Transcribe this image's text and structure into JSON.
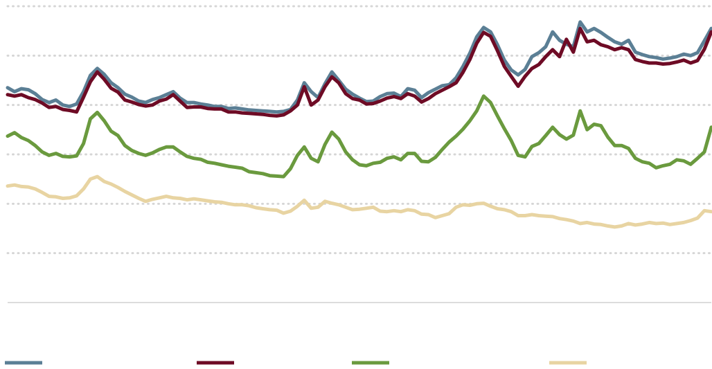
{
  "chart_data": {
    "type": "line",
    "title": "",
    "xlabel": "",
    "ylabel": "",
    "ylim": [
      0,
      6
    ],
    "yticks": [
      0,
      1,
      2,
      3,
      4,
      5,
      6
    ],
    "grid": true,
    "legend_position": "bottom",
    "x": [
      0,
      1,
      2,
      3,
      4,
      5,
      6,
      7,
      8,
      9,
      10,
      11,
      12,
      13,
      14,
      15,
      16,
      17,
      18,
      19,
      20,
      21,
      22,
      23,
      24,
      25,
      26,
      27,
      28,
      29,
      30,
      31,
      32,
      33,
      34,
      35,
      36,
      37,
      38,
      39,
      40,
      41,
      42,
      43,
      44,
      45,
      46,
      47,
      48,
      49,
      50,
      51,
      52,
      53,
      54,
      55,
      56,
      57,
      58,
      59,
      60,
      61,
      62,
      63,
      64,
      65,
      66,
      67,
      68,
      69,
      70,
      71,
      72,
      73,
      74,
      75,
      76,
      77,
      78,
      79,
      80,
      81,
      82,
      83,
      84,
      85,
      86,
      87,
      88,
      89,
      90,
      91,
      92,
      93,
      94,
      95,
      96,
      97,
      98,
      99,
      100,
      101,
      102
    ],
    "series": [
      {
        "color": "#5b7f95",
        "values": [
          4.35,
          4.27,
          4.33,
          4.31,
          4.23,
          4.11,
          4.05,
          4.1,
          4.0,
          3.97,
          4.02,
          4.27,
          4.6,
          4.74,
          4.62,
          4.45,
          4.35,
          4.22,
          4.16,
          4.08,
          4.05,
          4.11,
          4.15,
          4.21,
          4.27,
          4.14,
          4.05,
          4.05,
          4.02,
          4.0,
          3.97,
          3.97,
          3.93,
          3.94,
          3.92,
          3.9,
          3.89,
          3.88,
          3.87,
          3.86,
          3.87,
          3.91,
          4.1,
          4.45,
          4.27,
          4.15,
          4.43,
          4.67,
          4.5,
          4.32,
          4.22,
          4.14,
          4.07,
          4.08,
          4.17,
          4.23,
          4.24,
          4.17,
          4.33,
          4.3,
          4.15,
          4.25,
          4.32,
          4.39,
          4.41,
          4.55,
          4.78,
          5.05,
          5.38,
          5.57,
          5.48,
          5.22,
          4.91,
          4.71,
          4.61,
          4.72,
          4.98,
          5.06,
          5.18,
          5.48,
          5.31,
          5.23,
          5.18,
          5.68,
          5.48,
          5.55,
          5.47,
          5.37,
          5.28,
          5.23,
          5.31,
          5.07,
          5.02,
          4.98,
          4.96,
          4.93,
          4.95,
          4.98,
          5.03,
          5.0,
          5.06,
          5.3,
          5.55
        ]
      },
      {
        "color": "#6e0b25",
        "values": [
          4.21,
          4.18,
          4.21,
          4.15,
          4.11,
          4.04,
          3.95,
          3.97,
          3.91,
          3.89,
          3.86,
          4.16,
          4.47,
          4.67,
          4.52,
          4.34,
          4.26,
          4.1,
          4.06,
          4.01,
          3.98,
          4.0,
          4.08,
          4.12,
          4.21,
          4.08,
          3.95,
          3.96,
          3.96,
          3.93,
          3.92,
          3.92,
          3.86,
          3.86,
          3.84,
          3.83,
          3.82,
          3.81,
          3.79,
          3.78,
          3.8,
          3.88,
          4.0,
          4.37,
          4.0,
          4.1,
          4.37,
          4.57,
          4.45,
          4.23,
          4.13,
          4.1,
          4.02,
          4.03,
          4.08,
          4.14,
          4.17,
          4.13,
          4.23,
          4.18,
          4.06,
          4.13,
          4.23,
          4.3,
          4.37,
          4.45,
          4.66,
          4.92,
          5.25,
          5.47,
          5.39,
          5.1,
          4.78,
          4.58,
          4.38,
          4.58,
          4.74,
          4.82,
          4.98,
          5.12,
          4.98,
          5.33,
          5.07,
          5.55,
          5.28,
          5.31,
          5.22,
          5.18,
          5.12,
          5.16,
          5.12,
          4.92,
          4.88,
          4.85,
          4.85,
          4.83,
          4.84,
          4.87,
          4.91,
          4.85,
          4.9,
          5.13,
          5.48
        ]
      },
      {
        "color": "#6a9a3e",
        "values": [
          3.37,
          3.44,
          3.34,
          3.28,
          3.18,
          3.05,
          2.98,
          3.02,
          2.96,
          2.95,
          2.97,
          3.22,
          3.72,
          3.85,
          3.68,
          3.47,
          3.38,
          3.18,
          3.08,
          3.02,
          2.98,
          3.03,
          3.1,
          3.15,
          3.15,
          3.05,
          2.96,
          2.92,
          2.9,
          2.84,
          2.82,
          2.79,
          2.76,
          2.74,
          2.72,
          2.65,
          2.63,
          2.61,
          2.57,
          2.56,
          2.55,
          2.71,
          2.98,
          3.15,
          2.92,
          2.85,
          3.2,
          3.45,
          3.31,
          3.05,
          2.89,
          2.79,
          2.77,
          2.82,
          2.84,
          2.92,
          2.95,
          2.89,
          3.02,
          3.02,
          2.86,
          2.85,
          2.94,
          3.1,
          3.25,
          3.37,
          3.51,
          3.68,
          3.88,
          4.18,
          4.05,
          3.78,
          3.52,
          3.28,
          2.98,
          2.95,
          3.16,
          3.22,
          3.38,
          3.55,
          3.4,
          3.31,
          3.39,
          3.88,
          3.5,
          3.61,
          3.58,
          3.35,
          3.18,
          3.18,
          3.12,
          2.92,
          2.85,
          2.82,
          2.73,
          2.77,
          2.8,
          2.89,
          2.87,
          2.8,
          2.92,
          3.05,
          3.55
        ]
      },
      {
        "color": "#e8d4a2",
        "values": [
          2.36,
          2.38,
          2.35,
          2.34,
          2.3,
          2.23,
          2.15,
          2.14,
          2.11,
          2.12,
          2.16,
          2.3,
          2.5,
          2.55,
          2.45,
          2.4,
          2.33,
          2.25,
          2.18,
          2.11,
          2.05,
          2.09,
          2.12,
          2.15,
          2.12,
          2.11,
          2.08,
          2.1,
          2.08,
          2.06,
          2.04,
          2.03,
          2.0,
          1.98,
          1.98,
          1.96,
          1.92,
          1.9,
          1.88,
          1.87,
          1.81,
          1.85,
          1.95,
          2.07,
          1.91,
          1.93,
          2.05,
          2.01,
          1.98,
          1.93,
          1.88,
          1.89,
          1.91,
          1.93,
          1.85,
          1.84,
          1.86,
          1.84,
          1.88,
          1.86,
          1.79,
          1.78,
          1.72,
          1.76,
          1.8,
          1.93,
          1.98,
          1.97,
          2.0,
          2.01,
          1.95,
          1.9,
          1.88,
          1.84,
          1.76,
          1.76,
          1.78,
          1.76,
          1.75,
          1.74,
          1.7,
          1.68,
          1.65,
          1.6,
          1.62,
          1.59,
          1.58,
          1.55,
          1.53,
          1.55,
          1.6,
          1.57,
          1.59,
          1.62,
          1.6,
          1.61,
          1.58,
          1.6,
          1.62,
          1.66,
          1.71,
          1.86,
          1.84
        ]
      }
    ]
  }
}
